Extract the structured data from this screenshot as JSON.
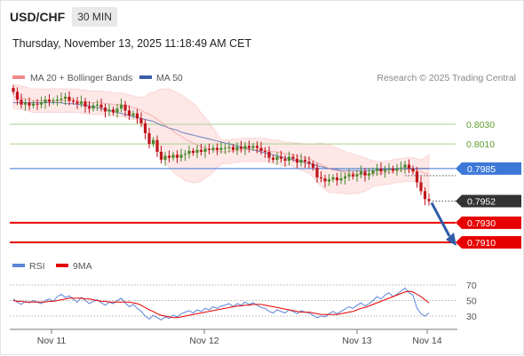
{
  "header": {
    "symbol": "USD/CHF",
    "timeframe": "30 MIN",
    "timestamp": "Thursday, November 13, 2025 11:18:49 AM CET"
  },
  "legend": {
    "ma20": "MA 20 + Bollinger Bands",
    "ma50": "MA 50",
    "credit": "Research © 2025 Trading Central",
    "rsi": "RSI",
    "ma9": "9MA"
  },
  "colors": {
    "ma20": "#f08a8a",
    "ma50": "#3a5fa8",
    "support": "#e60000",
    "resistance": "#a9d18e",
    "pivot": "#3d78d8",
    "up": "#4a8a2a",
    "down": "#c0161d",
    "rsi": "#5b84d6",
    "arrow": "#2e5ca8"
  },
  "chart_data": [
    {
      "type": "candlestick",
      "x_ticks": [
        "Nov 11",
        "Nov 12",
        "Nov 13",
        "Nov 14"
      ],
      "levels": [
        {
          "value": 0.803,
          "label": "0.8030",
          "kind": "resistance"
        },
        {
          "value": 0.801,
          "label": "0.8010",
          "kind": "resistance"
        },
        {
          "value": 0.7985,
          "label": "0.7985",
          "kind": "pivot"
        },
        {
          "value": 0.7952,
          "label": "0.7952",
          "kind": "last"
        },
        {
          "value": 0.793,
          "label": "0.7930",
          "kind": "support"
        },
        {
          "value": 0.791,
          "label": "0.7910",
          "kind": "support"
        }
      ],
      "close": [
        0.8063,
        0.8055,
        0.805,
        0.8052,
        0.8049,
        0.8051,
        0.805,
        0.8052,
        0.8055,
        0.8053,
        0.8054,
        0.8055,
        0.8056,
        0.8058,
        0.8054,
        0.8053,
        0.8051,
        0.8053,
        0.8048,
        0.8046,
        0.8049,
        0.805,
        0.8047,
        0.8043,
        0.8045,
        0.8042,
        0.8046,
        0.805,
        0.8044,
        0.8039,
        0.8041,
        0.8036,
        0.8031,
        0.8021,
        0.801,
        0.8014,
        0.8002,
        0.7994,
        0.7998,
        0.7996,
        0.7999,
        0.7996,
        0.7999,
        0.8,
        0.8003,
        0.8001,
        0.8004,
        0.8002,
        0.8005,
        0.8004,
        0.8006,
        0.8004,
        0.8006,
        0.8006,
        0.8007,
        0.8004,
        0.8007,
        0.8005,
        0.8008,
        0.8006,
        0.8008,
        0.8006,
        0.8003,
        0.8002,
        0.7996,
        0.7994,
        0.7997,
        0.7995,
        0.7993,
        0.7997,
        0.7995,
        0.7991,
        0.7994,
        0.7992,
        0.799,
        0.7986,
        0.7976,
        0.7975,
        0.7972,
        0.7974,
        0.7976,
        0.7973,
        0.7975,
        0.7977,
        0.7979,
        0.7977,
        0.7979,
        0.7982,
        0.7978,
        0.798,
        0.7983,
        0.7985,
        0.7982,
        0.7984,
        0.7985,
        0.7983,
        0.7985,
        0.7986,
        0.7989,
        0.7985,
        0.7982,
        0.7971,
        0.7962,
        0.7954,
        0.7952
      ],
      "ma20": [
        0.8058,
        0.8058,
        0.8057,
        0.8056,
        0.8055,
        0.8054,
        0.8054,
        0.8054,
        0.8054,
        0.8054,
        0.8054,
        0.8054,
        0.8054,
        0.8054,
        0.8054,
        0.8054,
        0.8054,
        0.8053,
        0.8053,
        0.8052,
        0.8052,
        0.8052,
        0.8052,
        0.8051,
        0.8051,
        0.805,
        0.805,
        0.805,
        0.8049,
        0.8048,
        0.8047,
        0.8046,
        0.8044,
        0.8042,
        0.804,
        0.8038,
        0.8035,
        0.8032,
        0.8029,
        0.8026,
        0.8023,
        0.802,
        0.8018,
        0.8015,
        0.8013,
        0.8011,
        0.8009,
        0.8007,
        0.8006,
        0.8005,
        0.8004,
        0.8003,
        0.8002,
        0.8002,
        0.8002,
        0.8003,
        0.8003,
        0.8004,
        0.8004,
        0.8004,
        0.8004,
        0.8004,
        0.8004,
        0.8004,
        0.8003,
        0.8002,
        0.8002,
        0.8001,
        0.8,
        0.8,
        0.7999,
        0.7998,
        0.7997,
        0.7996,
        0.7995,
        0.7993,
        0.7991,
        0.7989,
        0.7987,
        0.7985,
        0.7984,
        0.7983,
        0.7982,
        0.7981,
        0.798,
        0.798,
        0.7979,
        0.7979,
        0.7979,
        0.7979,
        0.798,
        0.798,
        0.798,
        0.7981,
        0.7981,
        0.7982,
        0.7983,
        0.7983,
        0.7984,
        0.7984,
        0.7984,
        0.7983,
        0.7982,
        0.798,
        0.7979
      ],
      "ma50": [
        0.8052,
        0.8052,
        0.8052,
        0.8052,
        0.8052,
        0.8052,
        0.8052,
        0.8052,
        0.8052,
        0.8052,
        0.8052,
        0.8052,
        0.8052,
        0.8051,
        0.8051,
        0.8051,
        0.805,
        0.805,
        0.8049,
        0.8049,
        0.8048,
        0.8047,
        0.8046,
        0.8045,
        0.8044,
        0.8043,
        0.8042,
        0.8041,
        0.804,
        0.8039,
        0.8038,
        0.8037,
        0.8036,
        0.8035,
        0.8034,
        0.8033,
        0.8031,
        0.8029,
        0.8028,
        0.8026,
        0.8025,
        0.8024,
        0.8022,
        0.8021,
        0.802,
        0.8019,
        0.8018,
        0.8017,
        0.8016,
        0.8015,
        0.8014,
        0.8013,
        0.8012,
        0.8011,
        0.801,
        0.8009,
        0.8008,
        0.8007,
        0.8006,
        0.8005,
        0.8004,
        0.8003,
        0.8002,
        0.8001,
        0.8,
        0.7999,
        0.7998,
        0.7997,
        0.7996,
        0.7995,
        0.7994,
        0.7993,
        0.7992,
        0.7991,
        0.799,
        0.7989,
        0.7988,
        0.7987,
        0.7986,
        0.7985,
        0.7984,
        0.7984,
        0.7983,
        0.7983,
        0.7983,
        0.7983,
        0.7983,
        0.7983,
        0.7983,
        0.7983,
        0.7983,
        0.7983,
        0.7984,
        0.7984,
        0.7984,
        0.7984,
        0.7985,
        0.7985,
        0.7985,
        0.7985,
        0.7985,
        0.7985,
        0.7985,
        0.7985,
        0.7985
      ]
    },
    {
      "type": "line",
      "y_ticks": [
        "70",
        "50",
        "30"
      ],
      "series": [
        {
          "name": "RSI",
          "values": [
            52,
            48,
            45,
            49,
            47,
            50,
            48,
            46,
            50,
            52,
            49,
            55,
            58,
            54,
            56,
            52,
            48,
            54,
            50,
            46,
            49,
            51,
            47,
            44,
            48,
            46,
            50,
            53,
            47,
            42,
            45,
            40,
            36,
            30,
            26,
            31,
            28,
            25,
            29,
            27,
            31,
            29,
            33,
            35,
            37,
            34,
            38,
            36,
            40,
            38,
            42,
            40,
            43,
            44,
            46,
            42,
            46,
            44,
            48,
            45,
            47,
            44,
            41,
            40,
            36,
            34,
            38,
            36,
            34,
            38,
            36,
            33,
            37,
            35,
            34,
            31,
            28,
            30,
            29,
            33,
            36,
            33,
            36,
            39,
            42,
            40,
            44,
            47,
            43,
            46,
            50,
            55,
            52,
            57,
            60,
            55,
            58,
            62,
            66,
            60,
            57,
            40,
            33,
            30,
            34
          ]
        },
        {
          "name": "9MA",
          "values": [
            50,
            49,
            49,
            48,
            48,
            48,
            48,
            48,
            48,
            49,
            49,
            50,
            51,
            52,
            53,
            53,
            53,
            53,
            52,
            52,
            51,
            50,
            49,
            49,
            48,
            48,
            48,
            48,
            48,
            48,
            47,
            46,
            44,
            41,
            38,
            36,
            33,
            31,
            30,
            29,
            28,
            28,
            29,
            30,
            31,
            32,
            33,
            34,
            35,
            36,
            37,
            38,
            39,
            40,
            41,
            42,
            43,
            43,
            44,
            44,
            45,
            45,
            45,
            44,
            43,
            42,
            41,
            40,
            39,
            38,
            37,
            36,
            35,
            35,
            35,
            34,
            33,
            32,
            32,
            32,
            32,
            32,
            33,
            34,
            35,
            36,
            38,
            40,
            41,
            43,
            45,
            47,
            49,
            51,
            53,
            55,
            57,
            59,
            61,
            62,
            61,
            58,
            55,
            51,
            47
          ]
        }
      ]
    }
  ]
}
